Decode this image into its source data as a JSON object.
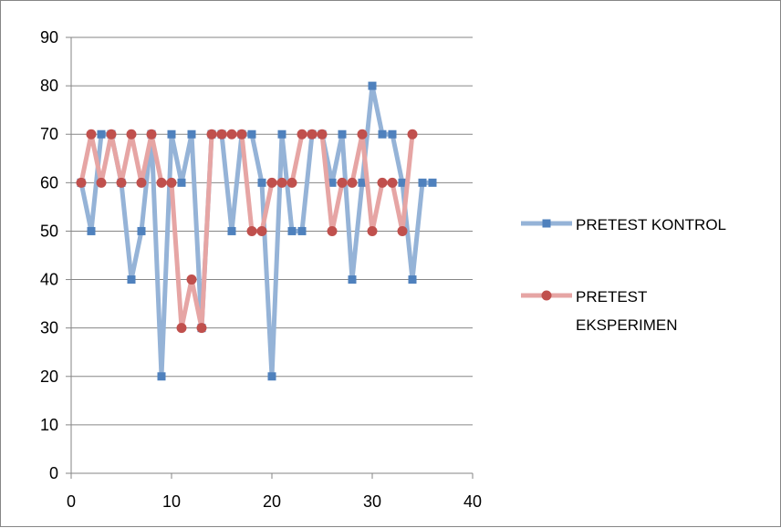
{
  "chart_data": {
    "type": "line",
    "title": "",
    "xlabel": "",
    "ylabel": "",
    "xlim": [
      0,
      40
    ],
    "ylim": [
      0,
      90
    ],
    "x_ticks": [
      0,
      10,
      20,
      30,
      40
    ],
    "y_ticks": [
      0,
      10,
      20,
      30,
      40,
      50,
      60,
      70,
      80,
      90
    ],
    "grid": "horizontal",
    "legend_position": "right",
    "series": [
      {
        "name": "PRETEST KONTROL",
        "color": "#95B3D7",
        "marker_color": "#4F81BD",
        "marker": "square",
        "x": [
          1,
          2,
          3,
          4,
          5,
          6,
          7,
          8,
          9,
          10,
          11,
          12,
          13,
          14,
          15,
          16,
          17,
          18,
          19,
          20,
          21,
          22,
          23,
          24,
          25,
          26,
          27,
          28,
          29,
          30,
          31,
          32,
          33,
          34,
          35,
          36
        ],
        "values": [
          60,
          50,
          70,
          70,
          60,
          40,
          50,
          70,
          20,
          70,
          60,
          70,
          30,
          70,
          70,
          50,
          70,
          70,
          60,
          20,
          70,
          50,
          50,
          70,
          70,
          60,
          70,
          40,
          60,
          80,
          70,
          70,
          60,
          40,
          60,
          60
        ]
      },
      {
        "name": "PRETEST EKSPERIMEN",
        "color": "#E6A5A4",
        "marker_color": "#C0504D",
        "marker": "circle",
        "x": [
          1,
          2,
          3,
          4,
          5,
          6,
          7,
          8,
          9,
          10,
          11,
          12,
          13,
          14,
          15,
          16,
          17,
          18,
          19,
          20,
          21,
          22,
          23,
          24,
          25,
          26,
          27,
          28,
          29,
          30,
          31,
          32,
          33,
          34
        ],
        "values": [
          60,
          70,
          60,
          70,
          60,
          70,
          60,
          70,
          60,
          60,
          30,
          40,
          30,
          70,
          70,
          70,
          70,
          50,
          50,
          60,
          60,
          60,
          70,
          70,
          70,
          50,
          60,
          60,
          70,
          50,
          60,
          60,
          50,
          70
        ]
      }
    ]
  },
  "legend": {
    "kontrol": {
      "line1": "PRETEST KONTROL",
      "line2": ""
    },
    "eksperimen": {
      "line1": "PRETEST",
      "line2": "EKSPERIMEN"
    }
  }
}
